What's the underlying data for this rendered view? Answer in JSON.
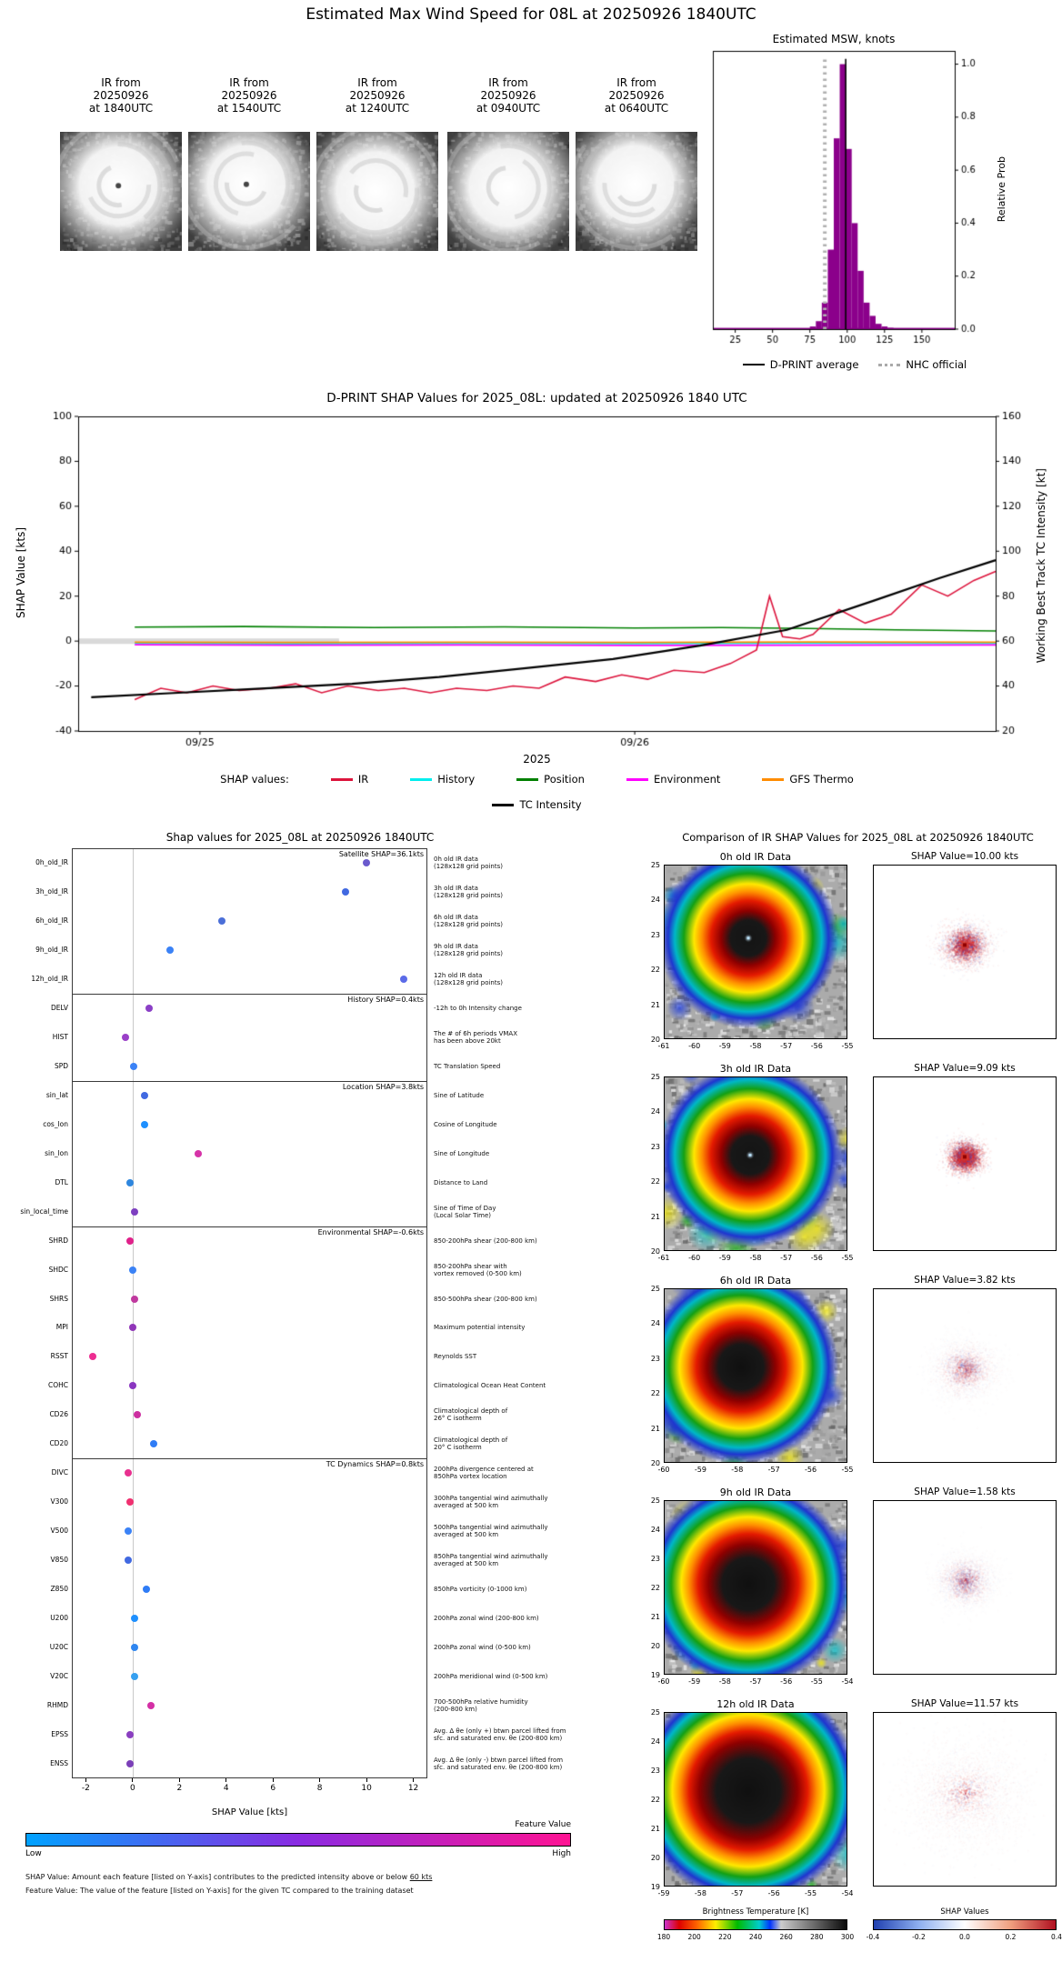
{
  "page_title": "Estimated Max Wind Speed for 08L at 20250926 1840UTC",
  "ir_thumbnails": [
    {
      "lines": [
        "IR from",
        "20250926",
        "at 1840UTC"
      ],
      "eye": true
    },
    {
      "lines": [
        "IR from",
        "20250926",
        "at 1540UTC"
      ],
      "eye": true
    },
    {
      "lines": [
        "IR from",
        "20250926",
        "at 1240UTC"
      ],
      "eye": false
    },
    {
      "lines": [
        "IR from",
        "20250926",
        "at 0940UTC"
      ],
      "eye": false
    },
    {
      "lines": [
        "IR from",
        "20250926",
        "at 0640UTC"
      ],
      "eye": false
    }
  ],
  "chart_data": [
    {
      "id": "msw_histogram",
      "type": "bar",
      "title": "Estimated MSW, knots",
      "ylabel": "Relative Prob",
      "xlim": [
        10,
        172
      ],
      "ylim": [
        0,
        1.05
      ],
      "xticks": [
        25,
        50,
        75,
        100,
        125,
        150
      ],
      "yticks": [
        "0.0",
        "0.2",
        "0.4",
        "0.6",
        "0.8",
        "1.0"
      ],
      "ytick_values": [
        0.0,
        0.2,
        0.4,
        0.6,
        0.8,
        1.0
      ],
      "bin_width": 4,
      "bar_color": "#8B008B",
      "bins": [
        77,
        81,
        85,
        89,
        93,
        97,
        101,
        105,
        109,
        113,
        117,
        121,
        125,
        129
      ],
      "values": [
        0.01,
        0.03,
        0.1,
        0.3,
        0.72,
        1.0,
        0.68,
        0.4,
        0.22,
        0.1,
        0.05,
        0.02,
        0.01,
        0.005
      ],
      "dprint_average": 99,
      "nhc_official": 85,
      "legend": [
        {
          "label": "D-PRINT average",
          "color": "#000000",
          "style": "solid"
        },
        {
          "label": "NHC official",
          "color": "#aaaaaa",
          "style": "dotted"
        }
      ]
    },
    {
      "id": "shap_timeseries",
      "type": "line",
      "title": "D-PRINT SHAP Values for 2025_08L: updated at 20250926 1840 UTC",
      "xlabel": "2025",
      "ylabel_left": "SHAP Value [kts]",
      "ylabel_right": "Working Best Track TC Intensity [kt]",
      "xlim": [
        24.72,
        26.83
      ],
      "ylim_left": [
        -40,
        100
      ],
      "ylim_right": [
        20,
        160
      ],
      "yticks_left": [
        -40,
        -20,
        0,
        20,
        40,
        60,
        80,
        100
      ],
      "yticks_right": [
        20,
        40,
        60,
        80,
        100,
        120,
        140,
        160
      ],
      "xticks": [
        {
          "pos": 25.0,
          "label": "09/25"
        },
        {
          "pos": 26.0,
          "label": "09/26"
        }
      ],
      "zero_band": {
        "x0": 24.72,
        "x1": 25.32,
        "y": 0,
        "color": "#d9d9d9"
      },
      "legend_title": "SHAP values:",
      "legend": [
        {
          "label": "IR",
          "color": "#DC143C"
        },
        {
          "label": "History",
          "color": "#00EEEE"
        },
        {
          "label": "Position",
          "color": "#008000"
        },
        {
          "label": "Environment",
          "color": "#FF00FF"
        },
        {
          "label": "GFS Thermo",
          "color": "#FF8C00"
        }
      ],
      "legend2": [
        {
          "label": "TC Intensity",
          "color": "#000000"
        }
      ],
      "series": [
        {
          "name": "History",
          "color": "#00EEEE",
          "axis": "left",
          "x": [
            24.85,
            25.2,
            25.6,
            26.0,
            26.4,
            26.83
          ],
          "y": [
            -1.0,
            -1.2,
            -1.0,
            -1.1,
            -0.9,
            -1.0
          ]
        },
        {
          "name": "Environment",
          "color": "#FF00FF",
          "axis": "left",
          "x": [
            24.85,
            25.2,
            25.6,
            26.0,
            26.4,
            26.83
          ],
          "y": [
            -1.6,
            -1.8,
            -1.7,
            -1.9,
            -1.8,
            -1.7
          ]
        },
        {
          "name": "GFS Thermo",
          "color": "#FF8C00",
          "axis": "left",
          "x": [
            24.85,
            25.2,
            25.6,
            26.0,
            26.4,
            26.83
          ],
          "y": [
            -0.5,
            -0.6,
            -0.5,
            -0.6,
            -0.4,
            -0.5
          ]
        },
        {
          "name": "Position",
          "color": "#008000",
          "axis": "left",
          "x": [
            24.85,
            25.1,
            25.4,
            25.7,
            26.0,
            26.2,
            26.4,
            26.6,
            26.83
          ],
          "y": [
            6.2,
            6.5,
            6.0,
            6.3,
            5.8,
            6.0,
            5.6,
            5.0,
            4.5
          ]
        },
        {
          "name": "IR",
          "color": "#DC143C",
          "axis": "left",
          "x": [
            24.85,
            24.91,
            24.97,
            25.03,
            25.09,
            25.16,
            25.22,
            25.28,
            25.34,
            25.41,
            25.47,
            25.53,
            25.59,
            25.66,
            25.72,
            25.78,
            25.84,
            25.91,
            25.97,
            26.03,
            26.09,
            26.16,
            26.22,
            26.28,
            26.31,
            26.34,
            26.38,
            26.41,
            26.47,
            26.53,
            26.59,
            26.66,
            26.72,
            26.78,
            26.83
          ],
          "y": [
            -26,
            -21,
            -23,
            -20,
            -22,
            -21,
            -19,
            -23,
            -20,
            -22,
            -21,
            -23,
            -21,
            -22,
            -20,
            -21,
            -16,
            -18,
            -15,
            -17,
            -13,
            -14,
            -10,
            -4,
            20,
            2,
            1,
            3,
            14,
            8,
            12,
            25,
            20,
            27,
            31
          ]
        },
        {
          "name": "TC Intensity",
          "color": "#000000",
          "axis": "right",
          "x": [
            24.75,
            24.95,
            25.15,
            25.35,
            25.55,
            25.75,
            25.95,
            26.15,
            26.35,
            26.55,
            26.7,
            26.83
          ],
          "y": [
            35,
            37,
            39,
            41,
            44,
            48,
            52,
            58,
            65,
            78,
            88,
            96
          ]
        }
      ]
    },
    {
      "id": "shap_dotplot",
      "type": "scatter",
      "title": "Shap values for 2025_08L at 20250926 1840UTC",
      "xlabel": "SHAP Value [kts]",
      "xlim": [
        -2.6,
        12.6
      ],
      "xticks": [
        -2,
        0,
        2,
        4,
        6,
        8,
        10,
        12
      ],
      "colorbar": {
        "label": "Feature Value",
        "low": "Low",
        "high": "High",
        "stops": [
          [
            0,
            "#00A2FF"
          ],
          [
            0.5,
            "#8A2BE2"
          ],
          [
            1,
            "#FF1493"
          ]
        ]
      },
      "note1_pre": "SHAP Value: Amount each feature [listed on Y-axis] contributes to the predicted intensity above or below ",
      "note1_underline": "60 kts",
      "note2": "Feature Value: The value of the feature [listed on Y-axis] for the given TC compared to the training dataset",
      "groups": [
        {
          "header": "Satellite SHAP=36.1kts",
          "rows": [
            {
              "label": "0h_old_IR",
              "value": 10.0,
              "color": "#6A5ACD",
              "desc": "0h old IR data\n(128x128 grid points)"
            },
            {
              "label": "3h_old_IR",
              "value": 9.09,
              "color": "#4169E1",
              "desc": "3h old IR data\n(128x128 grid points)"
            },
            {
              "label": "6h_old_IR",
              "value": 3.82,
              "color": "#4B6FD8",
              "desc": "6h old IR data\n(128x128 grid points)"
            },
            {
              "label": "9h_old_IR",
              "value": 1.58,
              "color": "#3B82F6",
              "desc": "9h old IR data\n(128x128 grid points)"
            },
            {
              "label": "12h_old_IR",
              "value": 11.57,
              "color": "#5B6BE8",
              "desc": "12h old IR data\n(128x128 grid points)"
            }
          ]
        },
        {
          "header": "History SHAP=0.4kts",
          "rows": [
            {
              "label": "DELV",
              "value": 0.7,
              "color": "#8B3FC6",
              "desc": "-12h to 0h Intensity change"
            },
            {
              "label": "HIST",
              "value": -0.3,
              "color": "#9A40C8",
              "desc": "The # of 6h periods VMAX\nhas been above 20kt"
            },
            {
              "label": "SPD",
              "value": 0.05,
              "color": "#3B82F6",
              "desc": "TC Translation Speed"
            }
          ]
        },
        {
          "header": "Location SHAP=3.8kts",
          "rows": [
            {
              "label": "sin_lat",
              "value": 0.5,
              "color": "#4169E1",
              "desc": "Sine of Latitude"
            },
            {
              "label": "cos_lon",
              "value": 0.5,
              "color": "#1E90FF",
              "desc": "Cosine of Longitude"
            },
            {
              "label": "sin_lon",
              "value": 2.8,
              "color": "#D633A8",
              "desc": "Sine of Longitude"
            },
            {
              "label": "DTL",
              "value": -0.1,
              "color": "#2E86DE",
              "desc": "Distance to Land"
            },
            {
              "label": "sin_local_time",
              "value": 0.1,
              "color": "#7D3FC0",
              "desc": "Sine of Time of Day\n(Local Solar Time)"
            }
          ]
        },
        {
          "header": "Environmental SHAP=-0.6kts",
          "rows": [
            {
              "label": "SHRD",
              "value": -0.1,
              "color": "#E0218A",
              "desc": "850-200hPa shear (200-800 km)"
            },
            {
              "label": "SHDC",
              "value": 0.0,
              "color": "#3B82F6",
              "desc": "850-200hPa shear with\nvortex removed (0-500 km)"
            },
            {
              "label": "SHRS",
              "value": 0.1,
              "color": "#C0399F",
              "desc": "850-500hPa shear (200-800 km)"
            },
            {
              "label": "MPI",
              "value": 0.0,
              "color": "#9036B8",
              "desc": "Maximum potential intensity"
            },
            {
              "label": "RSST",
              "value": -1.7,
              "color": "#ED2D91",
              "desc": "Reynolds SST"
            },
            {
              "label": "COHC",
              "value": 0.0,
              "color": "#8A36C0",
              "desc": "Climatological Ocean Heat Content"
            },
            {
              "label": "CD26",
              "value": 0.2,
              "color": "#CC2FA0",
              "desc": "Climatological depth of\n26° C isotherm"
            },
            {
              "label": "CD20",
              "value": 0.9,
              "color": "#2F7CF6",
              "desc": "Climatological depth of\n20° C isotherm"
            }
          ]
        },
        {
          "header": "TC Dynamics SHAP=0.8kts",
          "rows": [
            {
              "label": "DIVC",
              "value": -0.2,
              "color": "#E8308F",
              "desc": "200hPa divergence centered at\n850hPa vortex location"
            },
            {
              "label": "V300",
              "value": -0.1,
              "color": "#F03070",
              "desc": "300hPa tangential wind azimuthally\naveraged at 500 km"
            },
            {
              "label": "V500",
              "value": -0.2,
              "color": "#3B82F6",
              "desc": "500hPa tangential wind azimuthally\naveraged at 500 km"
            },
            {
              "label": "V850",
              "value": -0.2,
              "color": "#4169E1",
              "desc": "850hPa tangential wind azimuthally\naveraged at 500 km"
            },
            {
              "label": "Z850",
              "value": 0.6,
              "color": "#2F7CF6",
              "desc": "850hPa vorticity (0-1000 km)"
            },
            {
              "label": "U200",
              "value": 0.1,
              "color": "#1E90FF",
              "desc": "200hPa zonal wind (200-800 km)"
            },
            {
              "label": "U20C",
              "value": 0.1,
              "color": "#2F86F0",
              "desc": "200hPa zonal wind (0-500 km)"
            },
            {
              "label": "V20C",
              "value": 0.1,
              "color": "#36A0F0",
              "desc": "200hPa meridional wind (0-500 km)"
            },
            {
              "label": "RHMD",
              "value": 0.8,
              "color": "#D42FA5",
              "desc": "700-500hPa relative humidity\n(200-800 km)"
            },
            {
              "label": "EPSS",
              "value": -0.1,
              "color": "#8A3FC0",
              "desc": "Avg. Δ θe (only +) btwn parcel lifted from\nsfc. and saturated env. θe (200-800 km)"
            },
            {
              "label": "ENSS",
              "value": -0.1,
              "color": "#7B3FB8",
              "desc": "Avg. Δ θe (only -) btwn parcel lifted from\nsfc. and saturated env. θe (200-800 km)"
            }
          ]
        }
      ]
    },
    {
      "id": "ir_comparison",
      "type": "heatmap",
      "title": "Comparison of IR SHAP Values for 2025_08L at 20250926 1840UTC",
      "rows": [
        {
          "ir_title": "0h old IR Data",
          "shap_title": "SHAP Value=10.00 kts",
          "xticks": [
            "-61",
            "-60",
            "-59",
            "-58",
            "-57",
            "-56",
            "-55"
          ],
          "yticks": [
            "25",
            "24",
            "23",
            "22",
            "21",
            "20"
          ],
          "ir_style": {
            "cx": 0.46,
            "cy": 0.42,
            "core": 0.15,
            "eye": true
          },
          "shap_style": {
            "strength": 1.0,
            "spread": 0.09,
            "blue": 0.25,
            "core": true
          }
        },
        {
          "ir_title": "3h old IR Data",
          "shap_title": "SHAP Value=9.09 kts",
          "xticks": [
            "-61",
            "-60",
            "-59",
            "-58",
            "-57",
            "-56",
            "-55"
          ],
          "yticks": [
            "25",
            "24",
            "23",
            "22",
            "21",
            "20"
          ],
          "ir_style": {
            "cx": 0.47,
            "cy": 0.45,
            "core": 0.16,
            "eye": true
          },
          "shap_style": {
            "strength": 1.1,
            "spread": 0.07,
            "blue": 0.2,
            "core": true
          }
        },
        {
          "ir_title": "6h old IR Data",
          "shap_title": "SHAP Value=3.82 kts",
          "xticks": [
            "-60",
            "-59",
            "-58",
            "-57",
            "-56",
            "-55"
          ],
          "yticks": [
            "25",
            "24",
            "23",
            "22",
            "21",
            "20"
          ],
          "ir_style": {
            "cx": 0.42,
            "cy": 0.45,
            "core": 0.19,
            "eye": false
          },
          "shap_style": {
            "strength": 0.4,
            "spread": 0.12,
            "blue": 0.35,
            "core": false
          }
        },
        {
          "ir_title": "9h old IR Data",
          "shap_title": "SHAP Value=1.58 kts",
          "xticks": [
            "-60",
            "-59",
            "-58",
            "-57",
            "-56",
            "-55",
            "-54"
          ],
          "yticks": [
            "25",
            "24",
            "23",
            "22",
            "21",
            "20",
            "19"
          ],
          "ir_style": {
            "cx": 0.46,
            "cy": 0.48,
            "core": 0.22,
            "eye": false
          },
          "shap_style": {
            "strength": 0.35,
            "spread": 0.11,
            "blue": 0.45,
            "core": false
          }
        },
        {
          "ir_title": "12h old IR Data",
          "shap_title": "SHAP Value=11.57 kts",
          "xticks": [
            "-59",
            "-58",
            "-57",
            "-56",
            "-55",
            "-54"
          ],
          "yticks": [
            "25",
            "24",
            "23",
            "22",
            "21",
            "20",
            "19"
          ],
          "ir_style": {
            "cx": 0.46,
            "cy": 0.45,
            "core": 0.27,
            "eye": false
          },
          "shap_style": {
            "strength": 0.55,
            "spread": 0.22,
            "blue": 0.25,
            "core": false
          }
        }
      ],
      "bt_colorbar": {
        "label": "Brightness Temperature [K]",
        "ticks": [
          "180",
          "200",
          "220",
          "240",
          "260",
          "280",
          "300"
        ],
        "stops": [
          [
            0,
            "#cc33cc"
          ],
          [
            0.08,
            "#dd0000"
          ],
          [
            0.18,
            "#ff6600"
          ],
          [
            0.28,
            "#ffee00"
          ],
          [
            0.4,
            "#00bb00"
          ],
          [
            0.52,
            "#00cccc"
          ],
          [
            0.58,
            "#0033ff"
          ],
          [
            0.64,
            "#cccccc"
          ],
          [
            1,
            "#0a0a0a"
          ]
        ]
      },
      "shap_colorbar": {
        "label": "SHAP Values",
        "ticks": [
          "-0.4",
          "-0.2",
          "0.0",
          "0.2",
          "0.4"
        ],
        "stops": [
          [
            0,
            "#2040b0"
          ],
          [
            0.25,
            "#8fb0f0"
          ],
          [
            0.5,
            "#ffffff"
          ],
          [
            0.75,
            "#f0a080"
          ],
          [
            1,
            "#b01020"
          ]
        ]
      }
    }
  ]
}
